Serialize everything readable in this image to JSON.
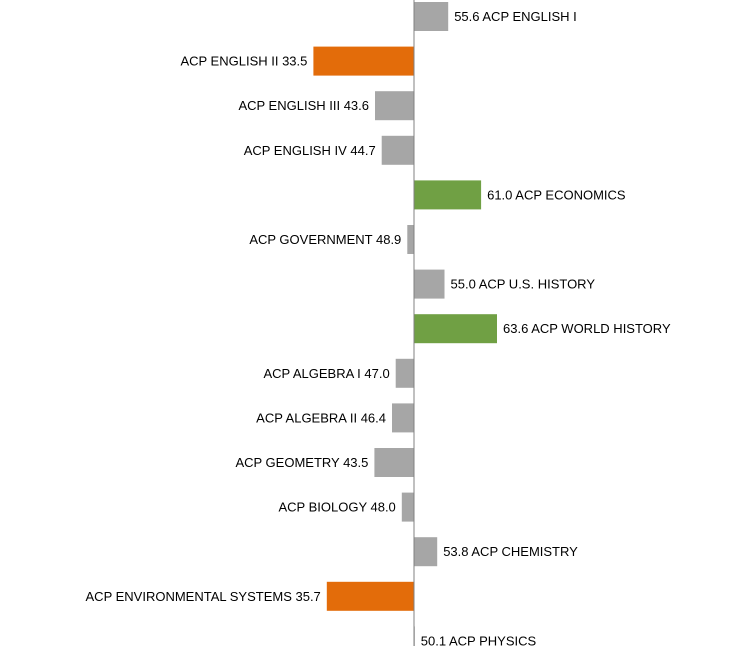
{
  "chart_data": {
    "type": "bar",
    "orientation": "horizontal",
    "baseline": 50,
    "categories": [
      "ACP ENGLISH I",
      "ACP ENGLISH II",
      "ACP ENGLISH III",
      "ACP ENGLISH IV",
      "ACP ECONOMICS",
      "ACP GOVERNMENT",
      "ACP U.S. HISTORY",
      "ACP WORLD HISTORY",
      "ACP ALGEBRA I",
      "ACP ALGEBRA II",
      "ACP GEOMETRY",
      "ACP BIOLOGY",
      "ACP CHEMISTRY",
      "ACP ENVIRONMENTAL SYSTEMS",
      "ACP PHYSICS"
    ],
    "values": [
      55.6,
      33.5,
      43.6,
      44.7,
      61.0,
      48.9,
      55.0,
      63.6,
      47.0,
      46.4,
      43.5,
      48.0,
      53.8,
      35.7,
      50.1
    ],
    "value_labels": [
      "55.6",
      "33.5",
      "43.6",
      "44.7",
      "61.0",
      "48.9",
      "55.0",
      "63.6",
      "47.0",
      "46.4",
      "43.5",
      "48.0",
      "53.8",
      "35.7",
      "50.1"
    ],
    "bar_status": [
      "normal",
      "low",
      "normal",
      "normal",
      "high",
      "normal",
      "normal",
      "high",
      "normal",
      "normal",
      "normal",
      "normal",
      "normal",
      "low",
      "normal"
    ],
    "colors": {
      "normal": "#a6a6a6",
      "high": "#70a044",
      "low": "#e36c0a",
      "axis": "#808080"
    },
    "title": "",
    "xlabel": "",
    "ylabel": "",
    "grid": false,
    "legend": "none"
  }
}
